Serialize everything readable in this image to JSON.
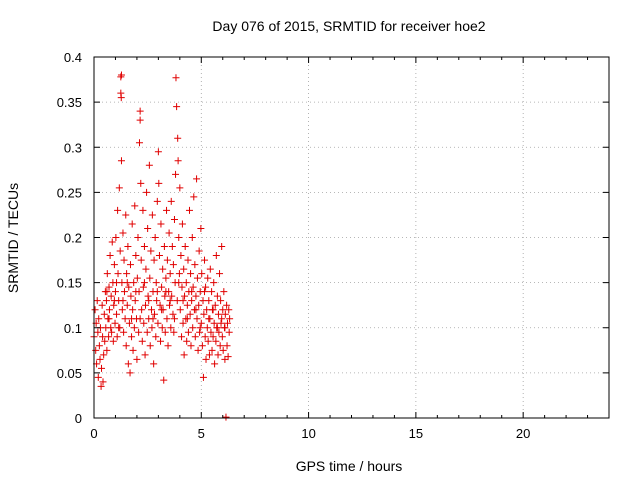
{
  "chart_data": {
    "type": "scatter",
    "title": "Day 076 of 2015, SRMTID for receiver hoe2",
    "xlabel": "GPS time / hours",
    "ylabel": "SRMTID / TECUs",
    "xlim": [
      0,
      24
    ],
    "ylim": [
      0,
      0.4
    ],
    "xticks": [
      0,
      5,
      10,
      15,
      20
    ],
    "yticks": [
      0,
      0.05,
      0.1,
      0.15,
      0.2,
      0.25,
      0.3,
      0.35,
      0.4
    ],
    "xtick_labels": [
      "0",
      "5",
      "10",
      "15",
      "20"
    ],
    "ytick_labels": [
      "0",
      "0.05",
      "0.1",
      "0.15",
      "0.2",
      "0.25",
      "0.3",
      "0.35",
      "0.4"
    ],
    "grid": true,
    "marker": "+",
    "color": "#e00000",
    "series": [
      {
        "name": "SRMTID",
        "points": [
          [
            0.0,
            0.09
          ],
          [
            0.05,
            0.12
          ],
          [
            0.08,
            0.075
          ],
          [
            0.1,
            0.105
          ],
          [
            0.12,
            0.06
          ],
          [
            0.15,
            0.13
          ],
          [
            0.18,
            0.095
          ],
          [
            0.2,
            0.045
          ],
          [
            0.22,
            0.11
          ],
          [
            0.25,
            0.08
          ],
          [
            0.28,
            0.065
          ],
          [
            0.3,
            0.1
          ],
          [
            0.33,
            0.035
          ],
          [
            0.35,
            0.055
          ],
          [
            0.38,
            0.125
          ],
          [
            0.4,
            0.09
          ],
          [
            0.42,
            0.04
          ],
          [
            0.45,
            0.07
          ],
          [
            0.48,
            0.115
          ],
          [
            0.5,
            0.085
          ],
          [
            0.53,
            0.14
          ],
          [
            0.55,
            0.1
          ],
          [
            0.58,
            0.13
          ],
          [
            0.6,
            0.075
          ],
          [
            0.62,
            0.16
          ],
          [
            0.65,
            0.11
          ],
          [
            0.68,
            0.09
          ],
          [
            0.7,
            0.145
          ],
          [
            0.72,
            0.12
          ],
          [
            0.75,
            0.18
          ],
          [
            0.78,
            0.1
          ],
          [
            0.8,
            0.135
          ],
          [
            0.82,
            0.095
          ],
          [
            0.85,
            0.195
          ],
          [
            0.88,
            0.15
          ],
          [
            0.9,
            0.085
          ],
          [
            0.92,
            0.125
          ],
          [
            0.95,
            0.17
          ],
          [
            0.98,
            0.105
          ],
          [
            1.0,
            0.14
          ],
          [
            1.02,
            0.2
          ],
          [
            1.05,
            0.115
          ],
          [
            1.08,
            0.09
          ],
          [
            1.1,
            0.23
          ],
          [
            1.12,
            0.16
          ],
          [
            1.15,
            0.13
          ],
          [
            1.18,
            0.255
          ],
          [
            1.2,
            0.1
          ],
          [
            1.22,
            0.185
          ],
          [
            1.25,
            0.378
          ],
          [
            1.25,
            0.36
          ],
          [
            1.27,
            0.355
          ],
          [
            1.28,
            0.38
          ],
          [
            1.28,
            0.285
          ],
          [
            1.3,
            0.15
          ],
          [
            1.32,
            0.12
          ],
          [
            1.35,
            0.205
          ],
          [
            1.38,
            0.095
          ],
          [
            1.4,
            0.175
          ],
          [
            1.42,
            0.14
          ],
          [
            1.45,
            0.11
          ],
          [
            1.48,
            0.225
          ],
          [
            1.5,
            0.08
          ],
          [
            1.52,
            0.16
          ],
          [
            1.55,
            0.125
          ],
          [
            1.58,
            0.19
          ],
          [
            1.6,
            0.06
          ],
          [
            1.62,
            0.145
          ],
          [
            1.65,
            0.105
          ],
          [
            1.68,
            0.05
          ],
          [
            1.7,
            0.17
          ],
          [
            1.72,
            0.135
          ],
          [
            1.75,
            0.09
          ],
          [
            1.78,
            0.215
          ],
          [
            1.8,
            0.12
          ],
          [
            1.82,
            0.075
          ],
          [
            1.85,
            0.15
          ],
          [
            1.88,
            0.1
          ],
          [
            1.9,
            0.235
          ],
          [
            1.92,
            0.13
          ],
          [
            1.95,
            0.18
          ],
          [
            1.98,
            0.11
          ],
          [
            2.0,
            0.065
          ],
          [
            2.02,
            0.155
          ],
          [
            2.05,
            0.2
          ],
          [
            2.08,
            0.095
          ],
          [
            2.1,
            0.14
          ],
          [
            2.12,
            0.305
          ],
          [
            2.15,
            0.34
          ],
          [
            2.15,
            0.33
          ],
          [
            2.18,
            0.26
          ],
          [
            2.2,
            0.175
          ],
          [
            2.22,
            0.12
          ],
          [
            2.25,
            0.085
          ],
          [
            2.28,
            0.23
          ],
          [
            2.3,
            0.145
          ],
          [
            2.32,
            0.105
          ],
          [
            2.35,
            0.19
          ],
          [
            2.38,
            0.07
          ],
          [
            2.4,
            0.125
          ],
          [
            2.42,
            0.165
          ],
          [
            2.45,
            0.25
          ],
          [
            2.48,
            0.095
          ],
          [
            2.5,
            0.21
          ],
          [
            2.52,
            0.135
          ],
          [
            2.55,
            0.11
          ],
          [
            2.58,
            0.28
          ],
          [
            2.6,
            0.155
          ],
          [
            2.62,
            0.08
          ],
          [
            2.65,
            0.185
          ],
          [
            2.68,
            0.12
          ],
          [
            2.7,
            0.1
          ],
          [
            2.72,
            0.225
          ],
          [
            2.75,
            0.14
          ],
          [
            2.78,
            0.06
          ],
          [
            2.8,
            0.175
          ],
          [
            2.82,
            0.115
          ],
          [
            2.85,
            0.2
          ],
          [
            2.88,
            0.09
          ],
          [
            2.9,
            0.15
          ],
          [
            2.92,
            0.13
          ],
          [
            2.95,
            0.24
          ],
          [
            2.98,
            0.105
          ],
          [
            3.0,
            0.295
          ],
          [
            3.02,
            0.26
          ],
          [
            3.05,
            0.18
          ],
          [
            3.08,
            0.125
          ],
          [
            3.1,
            0.085
          ],
          [
            3.12,
            0.215
          ],
          [
            3.15,
            0.145
          ],
          [
            3.18,
            0.1
          ],
          [
            3.2,
            0.165
          ],
          [
            3.22,
            0.12
          ],
          [
            3.25,
            0.042
          ],
          [
            3.28,
            0.19
          ],
          [
            3.3,
            0.135
          ],
          [
            3.32,
            0.095
          ],
          [
            3.35,
            0.155
          ],
          [
            3.38,
            0.23
          ],
          [
            3.4,
            0.11
          ],
          [
            3.42,
            0.175
          ],
          [
            3.45,
            0.08
          ],
          [
            3.48,
            0.14
          ],
          [
            3.5,
            0.205
          ],
          [
            3.52,
            0.125
          ],
          [
            3.55,
            0.16
          ],
          [
            3.58,
            0.1
          ],
          [
            3.6,
            0.24
          ],
          [
            3.62,
            0.135
          ],
          [
            3.65,
            0.19
          ],
          [
            3.68,
            0.115
          ],
          [
            3.7,
            0.17
          ],
          [
            3.72,
            0.095
          ],
          [
            3.75,
            0.22
          ],
          [
            3.78,
            0.15
          ],
          [
            3.8,
            0.27
          ],
          [
            3.82,
            0.377
          ],
          [
            3.85,
            0.345
          ],
          [
            3.88,
            0.13
          ],
          [
            3.9,
            0.31
          ],
          [
            3.92,
            0.285
          ],
          [
            3.95,
            0.2
          ],
          [
            3.98,
            0.16
          ],
          [
            4.0,
            0.255
          ],
          [
            4.02,
            0.12
          ],
          [
            4.05,
            0.18
          ],
          [
            4.08,
            0.09
          ],
          [
            4.1,
            0.145
          ],
          [
            4.12,
            0.215
          ],
          [
            4.15,
            0.105
          ],
          [
            4.18,
            0.165
          ],
          [
            4.2,
            0.07
          ],
          [
            4.22,
            0.135
          ],
          [
            4.25,
            0.19
          ],
          [
            4.28,
            0.11
          ],
          [
            4.3,
            0.15
          ],
          [
            4.32,
            0.085
          ],
          [
            4.35,
            0.125
          ],
          [
            4.38,
            0.175
          ],
          [
            4.4,
            0.095
          ],
          [
            4.42,
            0.14
          ],
          [
            4.45,
            0.23
          ],
          [
            4.48,
            0.115
          ],
          [
            4.5,
            0.16
          ],
          [
            4.52,
            0.08
          ],
          [
            4.55,
            0.13
          ],
          [
            4.58,
            0.2
          ],
          [
            4.6,
            0.1
          ],
          [
            4.62,
            0.145
          ],
          [
            4.65,
            0.245
          ],
          [
            4.68,
            0.12
          ],
          [
            4.7,
            0.17
          ],
          [
            4.72,
            0.09
          ],
          [
            4.75,
            0.135
          ],
          [
            4.78,
            0.265
          ],
          [
            4.8,
            0.11
          ],
          [
            4.82,
            0.155
          ],
          [
            4.85,
            0.075
          ],
          [
            4.88,
            0.125
          ],
          [
            4.9,
            0.185
          ],
          [
            4.92,
            0.095
          ],
          [
            4.95,
            0.14
          ],
          [
            4.98,
            0.21
          ],
          [
            5.0,
            0.105
          ],
          [
            5.02,
            0.16
          ],
          [
            5.05,
            0.08
          ],
          [
            5.08,
            0.13
          ],
          [
            5.1,
            0.045
          ],
          [
            5.12,
            0.115
          ],
          [
            5.15,
            0.175
          ],
          [
            5.18,
            0.09
          ],
          [
            5.2,
            0.145
          ],
          [
            5.22,
            0.065
          ],
          [
            5.25,
            0.12
          ],
          [
            5.28,
            0.1
          ],
          [
            5.3,
            0.155
          ],
          [
            5.32,
            0.085
          ],
          [
            5.35,
            0.13
          ],
          [
            5.38,
            0.07
          ],
          [
            5.4,
            0.11
          ],
          [
            5.42,
            0.165
          ],
          [
            5.45,
            0.095
          ],
          [
            5.48,
            0.14
          ],
          [
            5.5,
            0.075
          ],
          [
            5.52,
            0.12
          ],
          [
            5.55,
            0.09
          ],
          [
            5.58,
            0.15
          ],
          [
            5.6,
            0.105
          ],
          [
            5.62,
            0.06
          ],
          [
            5.65,
            0.125
          ],
          [
            5.68,
            0.085
          ],
          [
            5.7,
            0.18
          ],
          [
            5.72,
            0.1
          ],
          [
            5.75,
            0.135
          ],
          [
            5.78,
            0.07
          ],
          [
            5.8,
            0.115
          ],
          [
            5.82,
            0.095
          ],
          [
            5.85,
            0.16
          ],
          [
            5.88,
            0.08
          ],
          [
            5.9,
            0.13
          ],
          [
            5.92,
            0.105
          ],
          [
            5.95,
            0.19
          ],
          [
            5.98,
            0.09
          ],
          [
            6.0,
            0.12
          ],
          [
            6.02,
            0.075
          ],
          [
            6.05,
            0.14
          ],
          [
            6.08,
            0.1
          ],
          [
            6.1,
            0.065
          ],
          [
            6.12,
            0.115
          ],
          [
            6.15,
            0.001
          ],
          [
            6.18,
            0.125
          ],
          [
            6.2,
            0.08
          ],
          [
            6.22,
            0.105
          ],
          [
            6.25,
            0.068
          ],
          [
            6.28,
            0.12
          ],
          [
            6.3,
            0.095
          ],
          [
            6.32,
            0.11
          ],
          [
            0.6,
            0.14
          ],
          [
            0.7,
            0.11
          ],
          [
            0.95,
            0.13
          ],
          [
            1.05,
            0.15
          ],
          [
            1.15,
            0.1
          ],
          [
            1.35,
            0.13
          ],
          [
            1.55,
            0.15
          ],
          [
            1.75,
            0.11
          ],
          [
            1.95,
            0.14
          ],
          [
            2.15,
            0.11
          ],
          [
            2.35,
            0.15
          ],
          [
            2.55,
            0.13
          ],
          [
            2.75,
            0.11
          ],
          [
            2.95,
            0.14
          ],
          [
            3.15,
            0.12
          ],
          [
            3.35,
            0.14
          ],
          [
            3.55,
            0.13
          ],
          [
            3.75,
            0.11
          ],
          [
            3.95,
            0.15
          ],
          [
            4.15,
            0.13
          ],
          [
            4.35,
            0.11
          ],
          [
            4.55,
            0.14
          ],
          [
            4.75,
            0.12
          ],
          [
            4.95,
            0.1
          ],
          [
            5.15,
            0.14
          ],
          [
            5.35,
            0.11
          ],
          [
            5.55,
            0.12
          ],
          [
            5.75,
            0.1
          ],
          [
            5.95,
            0.11
          ],
          [
            6.1,
            0.1
          ]
        ]
      }
    ]
  }
}
